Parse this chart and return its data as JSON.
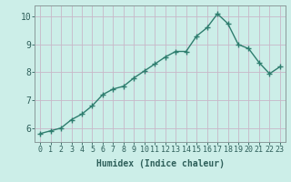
{
  "x": [
    0,
    1,
    2,
    3,
    4,
    5,
    6,
    7,
    8,
    9,
    10,
    11,
    12,
    13,
    14,
    15,
    16,
    17,
    18,
    19,
    20,
    21,
    22,
    23
  ],
  "y": [
    5.8,
    5.9,
    6.0,
    6.3,
    6.5,
    6.8,
    7.2,
    7.4,
    7.5,
    7.8,
    8.05,
    8.3,
    8.55,
    8.75,
    8.75,
    9.3,
    9.6,
    10.1,
    9.75,
    9.0,
    8.85,
    8.35,
    7.95,
    8.2
  ],
  "line_color": "#2e7d6e",
  "marker": "+",
  "marker_size": 4,
  "marker_lw": 1.0,
  "line_width": 1.0,
  "bg_color": "#cceee8",
  "grid_color": "#c8b8c8",
  "xlabel": "Humidex (Indice chaleur)",
  "ylim": [
    5.5,
    10.4
  ],
  "xlim": [
    -0.5,
    23.5
  ],
  "yticks": [
    6,
    7,
    8,
    9,
    10
  ],
  "xticks": [
    0,
    1,
    2,
    3,
    4,
    5,
    6,
    7,
    8,
    9,
    10,
    11,
    12,
    13,
    14,
    15,
    16,
    17,
    18,
    19,
    20,
    21,
    22,
    23
  ],
  "tick_color": "#2e5f5a",
  "xlabel_fontsize": 7,
  "tick_fontsize": 6,
  "spine_color": "#8a9a9a",
  "fig_w": 3.2,
  "fig_h": 2.0,
  "dpi": 100
}
